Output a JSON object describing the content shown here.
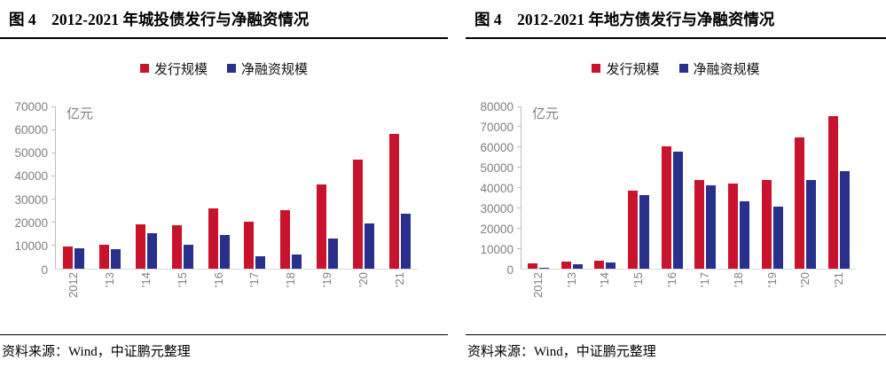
{
  "panels": [
    {
      "title": "图 4　2012-2021 年城投债发行与净融资情况",
      "unit": "亿元",
      "source": "资料来源：Wind，中证鹏元整理"
    },
    {
      "title": "图 4　2012-2021 年地方债发行与净融资情况",
      "unit": "亿元",
      "source": "资料来源：Wind，中证鹏元整理"
    }
  ],
  "colors": {
    "issuance_red": "#c9132d",
    "net_financing_blue": "#28308c",
    "axis_text_gray": "#7f7f7f",
    "axis_line_gray": "#bfbfbf"
  },
  "chart_data": [
    {
      "type": "bar",
      "title": "2012-2021 年城投债发行与净融资情况",
      "categories": [
        "2012",
        "'13",
        "'14",
        "'15",
        "'16",
        "'17",
        "'18",
        "'19",
        "'20",
        "'21"
      ],
      "series": [
        {
          "name": "发行规模",
          "color": "#c9132d",
          "values": [
            9700,
            10500,
            19100,
            18600,
            26000,
            20300,
            25200,
            36200,
            47200,
            58100
          ]
        },
        {
          "name": "净融资规模",
          "color": "#28308c",
          "values": [
            8800,
            8500,
            15300,
            10300,
            14700,
            5400,
            6100,
            12900,
            19500,
            23600
          ]
        }
      ],
      "xlabel": "",
      "ylabel": "亿元",
      "ylim": [
        0,
        70000
      ],
      "yticks": [
        0,
        10000,
        20000,
        30000,
        40000,
        50000,
        60000,
        70000
      ],
      "grid": false,
      "legend_position": "top"
    },
    {
      "type": "bar",
      "title": "2012-2021 年地方债发行与净融资情况",
      "categories": [
        "2012",
        "'13",
        "'14",
        "'15",
        "'16",
        "'17",
        "'18",
        "'19",
        "'20",
        "'21"
      ],
      "series": [
        {
          "name": "发行规模",
          "color": "#c9132d",
          "values": [
            2800,
            3500,
            4100,
            38400,
            60400,
            43600,
            41900,
            43600,
            64700,
            75200
          ]
        },
        {
          "name": "净融资规模",
          "color": "#28308c",
          "values": [
            600,
            2200,
            2900,
            36300,
            57800,
            41100,
            33300,
            30600,
            43700,
            48300
          ]
        }
      ],
      "xlabel": "",
      "ylabel": "亿元",
      "ylim": [
        0,
        80000
      ],
      "yticks": [
        0,
        10000,
        20000,
        30000,
        40000,
        50000,
        60000,
        70000,
        80000
      ],
      "grid": false,
      "legend_position": "top"
    }
  ]
}
